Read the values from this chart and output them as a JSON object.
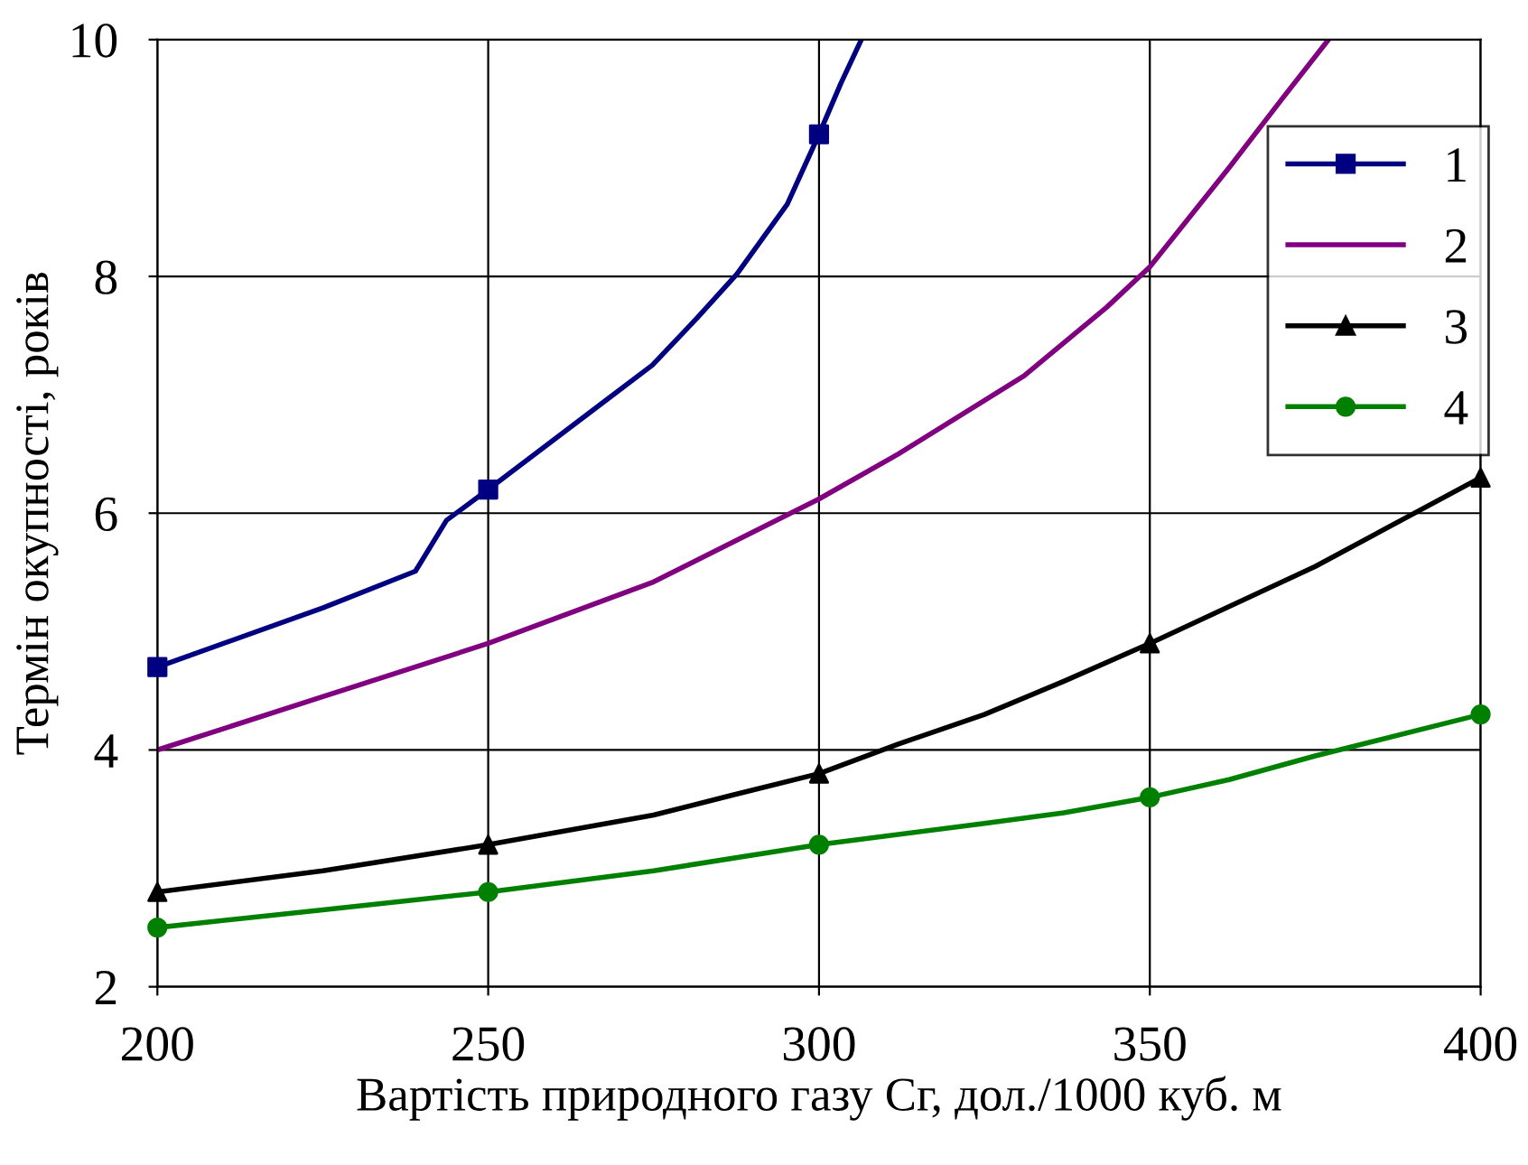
{
  "chart_data": {
    "type": "line",
    "xlabel": "Вартість природного газу Cг, дол./1000 куб. м",
    "ylabel": "Термін окупності, років",
    "xlim": [
      200,
      400
    ],
    "ylim": [
      2,
      10
    ],
    "xticks": [
      200,
      250,
      300,
      350,
      400
    ],
    "yticks": [
      2,
      4,
      6,
      8,
      10
    ],
    "grid": true,
    "legend": "top right",
    "series": [
      {
        "name": "1",
        "color": "#000080",
        "marker": "none",
        "x": [
          200,
          225,
          239,
          243.7,
          250,
          267.7,
          274.8,
          281.6,
          287.6,
          295.2,
          300,
          303.3,
          306.4
        ],
        "values": [
          4.7,
          5.2,
          5.51,
          5.94,
          6.2,
          6.95,
          7.25,
          7.65,
          8.02,
          8.61,
          9.2,
          9.63,
          10
        ]
      },
      {
        "type": "scatter",
        "color": "#000080",
        "marker": "square",
        "x": [
          200,
          250,
          300
        ],
        "values": [
          4.7,
          6.2,
          9.2
        ]
      },
      {
        "name": "2",
        "color": "#800080",
        "marker": "none",
        "x": [
          200,
          225,
          250,
          275,
          300,
          312,
          331,
          343.5,
          350,
          362,
          370,
          377
        ],
        "values": [
          4.0,
          4.45,
          4.9,
          5.42,
          6.12,
          6.5,
          7.16,
          7.74,
          8.08,
          8.92,
          9.5,
          10
        ]
      },
      {
        "name": "3",
        "color": "#000000",
        "marker": "none",
        "x": [
          200,
          225,
          250,
          275,
          287,
          300,
          312,
          325,
          337,
          350,
          375,
          400
        ],
        "values": [
          2.8,
          2.98,
          3.2,
          3.45,
          3.62,
          3.8,
          4.05,
          4.3,
          4.58,
          4.9,
          5.55,
          6.3
        ]
      },
      {
        "type": "scatter",
        "color": "#000000",
        "marker": "triangle",
        "x": [
          200,
          250,
          300,
          350,
          400
        ],
        "values": [
          2.8,
          3.2,
          3.8,
          4.9,
          6.3
        ]
      },
      {
        "name": "4",
        "color": "#008000",
        "marker": "none",
        "x": [
          200,
          225,
          250,
          275,
          300,
          325,
          337,
          350,
          362,
          375,
          400
        ],
        "values": [
          2.5,
          2.65,
          2.8,
          2.98,
          3.2,
          3.38,
          3.47,
          3.6,
          3.75,
          3.95,
          4.3
        ]
      },
      {
        "type": "scatter",
        "color": "#008000",
        "marker": "circle",
        "x": [
          200,
          250,
          300,
          350,
          400
        ],
        "values": [
          2.5,
          2.8,
          3.2,
          3.6,
          4.3
        ]
      }
    ]
  }
}
